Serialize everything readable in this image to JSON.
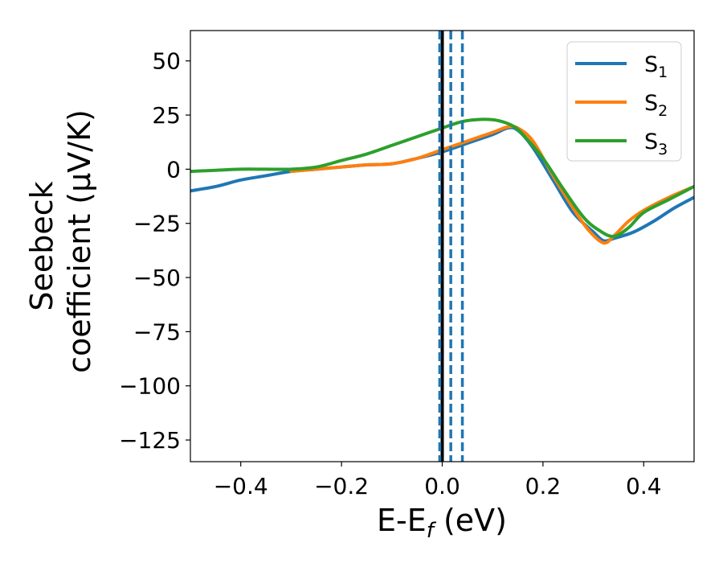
{
  "chart_data": {
    "type": "line",
    "xlabel": "E-E_f (eV)",
    "xlabel_parts": {
      "base": "E-E",
      "sub": "f",
      "tail": " (eV)"
    },
    "ylabel_line1": "Seebeck",
    "ylabel_line2": "coefficient  (μV/K)",
    "xlim": [
      -0.5,
      0.5
    ],
    "ylim": [
      -135,
      64
    ],
    "xticks": [
      -0.4,
      -0.2,
      0.0,
      0.2,
      0.4
    ],
    "xtick_labels": [
      "−0.4",
      "−0.2",
      "0.0",
      "0.2",
      "0.4"
    ],
    "yticks": [
      50,
      25,
      0,
      -25,
      -50,
      -75,
      -100,
      -125
    ],
    "ytick_labels": [
      "50",
      "25",
      "0",
      "−25",
      "−50",
      "−75",
      "−100",
      "−125"
    ],
    "grid": false,
    "legend_position": "top-right",
    "vlines": [
      {
        "x": 0.0,
        "style": "solid",
        "color": "#000000"
      },
      {
        "x": -0.005,
        "style": "dashed",
        "color": "#1f77b4"
      },
      {
        "x": 0.017,
        "style": "dashed",
        "color": "#1f77b4"
      },
      {
        "x": 0.04,
        "style": "dashed",
        "color": "#1f77b4"
      }
    ],
    "series": [
      {
        "name": "S1",
        "legend_base": "S",
        "legend_sub": "1",
        "color": "#1f77b4",
        "points": [
          [
            -0.5,
            -10
          ],
          [
            -0.45,
            -8
          ],
          [
            -0.4,
            -5
          ],
          [
            -0.35,
            -3
          ],
          [
            -0.3,
            -1
          ],
          [
            -0.25,
            0
          ],
          [
            -0.2,
            1
          ],
          [
            -0.15,
            2
          ],
          [
            -0.1,
            2.5
          ],
          [
            -0.05,
            5
          ],
          [
            0.0,
            8
          ],
          [
            0.05,
            12
          ],
          [
            0.1,
            16
          ],
          [
            0.13,
            19
          ],
          [
            0.15,
            18
          ],
          [
            0.18,
            10
          ],
          [
            0.22,
            -5
          ],
          [
            0.26,
            -20
          ],
          [
            0.3,
            -29
          ],
          [
            0.32,
            -33
          ],
          [
            0.34,
            -32
          ],
          [
            0.38,
            -29
          ],
          [
            0.42,
            -24
          ],
          [
            0.46,
            -18
          ],
          [
            0.5,
            -13
          ]
        ]
      },
      {
        "name": "S2",
        "legend_base": "S",
        "legend_sub": "2",
        "color": "#ff7f0e",
        "points": [
          [
            -0.3,
            -1
          ],
          [
            -0.25,
            0
          ],
          [
            -0.2,
            1
          ],
          [
            -0.15,
            2
          ],
          [
            -0.1,
            2.5
          ],
          [
            -0.05,
            5
          ],
          [
            0.0,
            9
          ],
          [
            0.05,
            13
          ],
          [
            0.1,
            17
          ],
          [
            0.13,
            19.5
          ],
          [
            0.15,
            19
          ],
          [
            0.18,
            13
          ],
          [
            0.22,
            -3
          ],
          [
            0.26,
            -18
          ],
          [
            0.29,
            -28
          ],
          [
            0.32,
            -34
          ],
          [
            0.34,
            -31
          ],
          [
            0.37,
            -24
          ],
          [
            0.4,
            -19
          ],
          [
            0.45,
            -13
          ],
          [
            0.5,
            -8
          ]
        ]
      },
      {
        "name": "S3",
        "legend_base": "S",
        "legend_sub": "3",
        "color": "#2ca02c",
        "points": [
          [
            -0.5,
            -1
          ],
          [
            -0.45,
            -0.5
          ],
          [
            -0.4,
            0
          ],
          [
            -0.35,
            0
          ],
          [
            -0.3,
            0
          ],
          [
            -0.25,
            1
          ],
          [
            -0.2,
            4
          ],
          [
            -0.15,
            7
          ],
          [
            -0.1,
            11
          ],
          [
            -0.05,
            15
          ],
          [
            0.0,
            19
          ],
          [
            0.04,
            22
          ],
          [
            0.08,
            23
          ],
          [
            0.11,
            22.5
          ],
          [
            0.14,
            20
          ],
          [
            0.16,
            16
          ],
          [
            0.2,
            5
          ],
          [
            0.24,
            -9
          ],
          [
            0.28,
            -22
          ],
          [
            0.31,
            -28
          ],
          [
            0.34,
            -31
          ],
          [
            0.37,
            -27
          ],
          [
            0.4,
            -20
          ],
          [
            0.45,
            -14
          ],
          [
            0.5,
            -8
          ]
        ]
      }
    ]
  }
}
